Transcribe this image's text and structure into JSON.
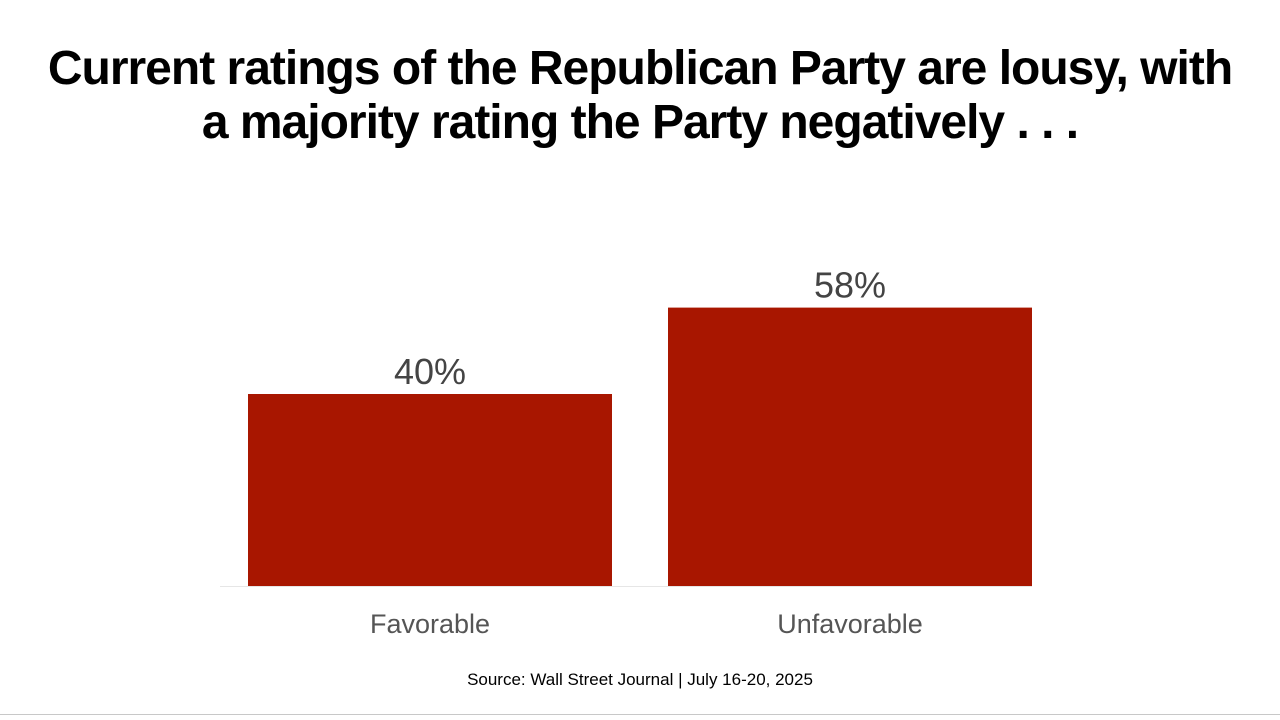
{
  "chart_data": {
    "type": "bar",
    "title": "Current ratings of the Republican Party are lousy, with a majority rating the Party negatively . . .",
    "title_lines": [
      "Current ratings of the Republican Party are lousy, with",
      "a majority rating the Party negatively . . ."
    ],
    "categories": [
      "Favorable",
      "Unfavorable"
    ],
    "values": [
      40,
      58
    ],
    "value_labels": [
      "40%",
      "58%"
    ],
    "ylim": [
      0,
      100
    ],
    "xlabel": "",
    "ylabel": "",
    "grid": false,
    "legend": "none",
    "colors": {
      "bar": "#a81600",
      "label": "#444444",
      "axis": "#e6e6e6"
    }
  },
  "source": "Source: Wall Street Journal | July 16-20, 2025"
}
